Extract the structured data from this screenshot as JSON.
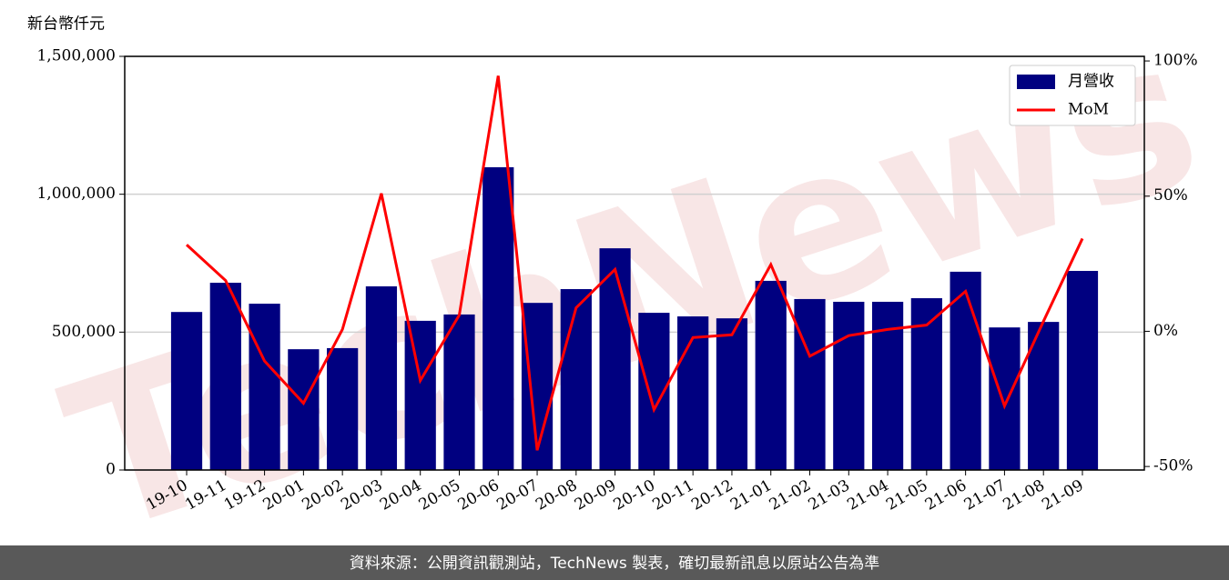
{
  "chart_data": {
    "type": "bar_line",
    "y_label": "新台幣仟元",
    "watermark": "TechNews",
    "footer": "資料來源：公開資訊觀測站，TechNews 製表，確切最新訊息以原站公告為準",
    "categories": [
      "19-10",
      "19-11",
      "19-12",
      "20-01",
      "20-02",
      "20-03",
      "20-04",
      "20-05",
      "20-06",
      "20-07",
      "20-08",
      "20-09",
      "20-10",
      "20-11",
      "20-12",
      "21-01",
      "21-02",
      "21-03",
      "21-04",
      "21-05",
      "21-06",
      "21-07",
      "21-08",
      "21-09"
    ],
    "series": [
      {
        "name": "月營收",
        "type": "bar",
        "color": "#000080",
        "values": [
          573000,
          679000,
          603000,
          438000,
          442000,
          666000,
          541000,
          564000,
          1098000,
          606000,
          656000,
          804000,
          570000,
          557000,
          550000,
          686000,
          620000,
          610000,
          610000,
          623000,
          719000,
          517000,
          537000,
          722000
        ]
      },
      {
        "name": "MoM",
        "type": "line",
        "axis": "y2",
        "color": "#ff0000",
        "values": [
          32,
          18.8,
          -11,
          -26.6,
          0.7,
          51,
          -18.2,
          6,
          94.5,
          -44,
          8.7,
          22.9,
          -29,
          -2.3,
          -1.3,
          24.7,
          -9.2,
          -1.6,
          0.7,
          2.3,
          14.8,
          -27.6,
          3.7,
          34.3
        ]
      }
    ],
    "ylim": [
      0,
      1500000
    ],
    "yticks": [
      {
        "value": 0,
        "label": "0"
      },
      {
        "value": 500000,
        "label": "500,000"
      },
      {
        "value": 1000000,
        "label": "1,000,000"
      },
      {
        "value": 1500000,
        "label": "1,500,000"
      }
    ],
    "y2lim": [
      -51.3,
      101.7
    ],
    "y2ticks": [
      {
        "value": -50,
        "label": "-50%"
      },
      {
        "value": 0,
        "label": "0%"
      },
      {
        "value": 50,
        "label": "50%"
      },
      {
        "value": 100,
        "label": "100%"
      }
    ],
    "grid": true,
    "legend": "upper right"
  }
}
